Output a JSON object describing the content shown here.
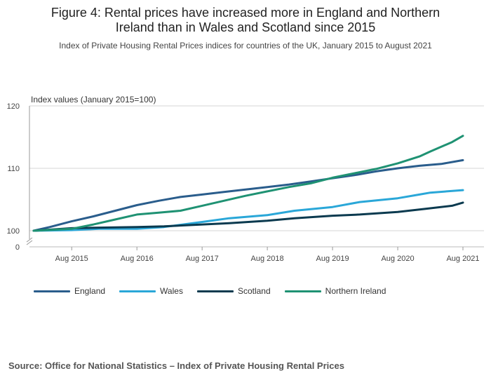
{
  "figure": {
    "title_line1": "Figure 4: Rental prices have increased more in England and Northern",
    "title_line2": "Ireland than in Wales and Scotland since 2015",
    "subtitle": "Index of Private Housing Rental Prices indices for countries of the UK, January 2015 to August 2021",
    "source": "Source: Office for National Statistics – Index of Private Housing Rental Prices"
  },
  "colors": {
    "England": "#2a5d8c",
    "Wales": "#2aa7d8",
    "Scotland": "#0b3a4f",
    "Northern Ireland": "#1f9273"
  },
  "chart_data": {
    "type": "line",
    "title": "Figure 4: Rental prices have increased more in England and Northern Ireland than in Wales and Scotland since 2015",
    "subtitle": "Index of Private Housing Rental Prices indices for countries of the UK, January 2015 to August 2021",
    "ylabel": "Index values (January 2015=100)",
    "xlabel": "",
    "ylim": [
      100,
      120
    ],
    "yticks": [
      120,
      110,
      100
    ],
    "y_axis_break_label": "0",
    "xticks": [
      "Aug 2015",
      "Aug 2016",
      "Aug 2017",
      "Aug 2018",
      "Aug 2019",
      "Aug 2020",
      "Aug 2021"
    ],
    "x_period": "January 2015 to August 2021",
    "grid": "horizontal",
    "legend_position": "bottom",
    "series": [
      {
        "name": "England",
        "points": [
          [
            "2015-01",
            100.0
          ],
          [
            "2015-04",
            100.6
          ],
          [
            "2015-08",
            101.5
          ],
          [
            "2015-12",
            102.3
          ],
          [
            "2016-04",
            103.2
          ],
          [
            "2016-08",
            104.1
          ],
          [
            "2016-12",
            104.8
          ],
          [
            "2017-04",
            105.4
          ],
          [
            "2017-08",
            105.8
          ],
          [
            "2017-12",
            106.2
          ],
          [
            "2018-04",
            106.6
          ],
          [
            "2018-08",
            107.0
          ],
          [
            "2018-12",
            107.4
          ],
          [
            "2019-04",
            107.9
          ],
          [
            "2019-08",
            108.4
          ],
          [
            "2019-12",
            108.9
          ],
          [
            "2020-04",
            109.5
          ],
          [
            "2020-08",
            110.0
          ],
          [
            "2020-12",
            110.4
          ],
          [
            "2021-04",
            110.7
          ],
          [
            "2021-08",
            111.3
          ]
        ]
      },
      {
        "name": "Wales",
        "points": [
          [
            "2015-01",
            100.0
          ],
          [
            "2015-08",
            100.1
          ],
          [
            "2016-01",
            100.3
          ],
          [
            "2016-08",
            100.3
          ],
          [
            "2017-01",
            100.6
          ],
          [
            "2017-08",
            101.4
          ],
          [
            "2018-01",
            102.0
          ],
          [
            "2018-08",
            102.5
          ],
          [
            "2019-01",
            103.2
          ],
          [
            "2019-08",
            103.8
          ],
          [
            "2020-01",
            104.6
          ],
          [
            "2020-08",
            105.2
          ],
          [
            "2020-12",
            105.8
          ],
          [
            "2021-02",
            106.1
          ],
          [
            "2021-08",
            106.5
          ]
        ]
      },
      {
        "name": "Scotland",
        "points": [
          [
            "2015-01",
            100.0
          ],
          [
            "2015-08",
            100.4
          ],
          [
            "2016-01",
            100.5
          ],
          [
            "2016-08",
            100.6
          ],
          [
            "2017-01",
            100.7
          ],
          [
            "2017-08",
            101.0
          ],
          [
            "2018-01",
            101.2
          ],
          [
            "2018-08",
            101.6
          ],
          [
            "2019-01",
            102.0
          ],
          [
            "2019-08",
            102.4
          ],
          [
            "2020-01",
            102.6
          ],
          [
            "2020-08",
            103.0
          ],
          [
            "2021-01",
            103.5
          ],
          [
            "2021-06",
            104.0
          ],
          [
            "2021-08",
            104.5
          ]
        ]
      },
      {
        "name": "Northern Ireland",
        "points": [
          [
            "2015-01",
            100.0
          ],
          [
            "2015-08",
            100.3
          ],
          [
            "2015-12",
            101.0
          ],
          [
            "2016-04",
            101.8
          ],
          [
            "2016-08",
            102.6
          ],
          [
            "2016-12",
            102.9
          ],
          [
            "2017-04",
            103.2
          ],
          [
            "2017-08",
            104.0
          ],
          [
            "2017-12",
            104.8
          ],
          [
            "2018-04",
            105.6
          ],
          [
            "2018-08",
            106.3
          ],
          [
            "2018-12",
            107.0
          ],
          [
            "2019-04",
            107.6
          ],
          [
            "2019-08",
            108.5
          ],
          [
            "2019-12",
            109.2
          ],
          [
            "2020-04",
            109.9
          ],
          [
            "2020-08",
            110.8
          ],
          [
            "2020-12",
            111.9
          ],
          [
            "2021-02",
            112.7
          ],
          [
            "2021-06",
            114.2
          ],
          [
            "2021-08",
            115.2
          ]
        ]
      }
    ]
  }
}
